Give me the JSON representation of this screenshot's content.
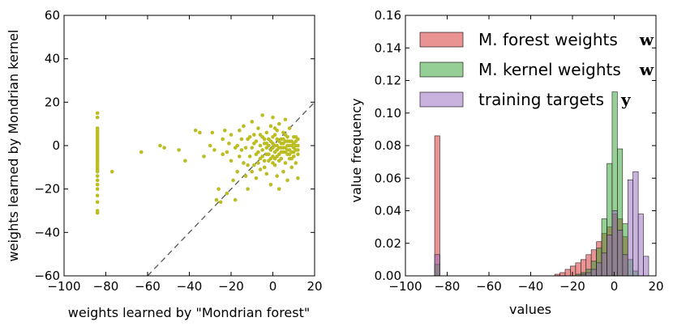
{
  "chart_data": [
    {
      "type": "scatter",
      "xlabel": "weights learned by \"Mondrian forest\"",
      "ylabel": "weights learned by Mondrian kernel",
      "xlim": [
        -100,
        20
      ],
      "ylim": [
        -60,
        60
      ],
      "xticks": [
        -100,
        -80,
        -60,
        -40,
        -20,
        0,
        20
      ],
      "yticks": [
        -60,
        -40,
        -20,
        0,
        20,
        40,
        60
      ],
      "xtick_labels": [
        "−100",
        "−80",
        "−60",
        "−40",
        "−20",
        "0",
        "20"
      ],
      "ytick_labels": [
        "−60",
        "−40",
        "−20",
        "0",
        "20",
        "40",
        "60"
      ],
      "reference_line": {
        "label": "y = x",
        "style": "dashed",
        "color": "#555555"
      },
      "point_color": "#bcbd22",
      "points": [
        [
          -84,
          15
        ],
        [
          -84,
          13
        ],
        [
          -84,
          8
        ],
        [
          -84,
          7
        ],
        [
          -84,
          6
        ],
        [
          -84,
          5
        ],
        [
          -84,
          4
        ],
        [
          -84,
          3
        ],
        [
          -84,
          2
        ],
        [
          -84,
          1
        ],
        [
          -84,
          0
        ],
        [
          -84,
          -1
        ],
        [
          -84,
          -2
        ],
        [
          -84,
          -3
        ],
        [
          -84,
          -4
        ],
        [
          -84,
          -5
        ],
        [
          -84,
          -6
        ],
        [
          -84,
          -7
        ],
        [
          -84,
          -8
        ],
        [
          -84,
          -9
        ],
        [
          -84,
          -10
        ],
        [
          -84,
          -11
        ],
        [
          -84,
          -12
        ],
        [
          -84,
          -14
        ],
        [
          -84,
          -16
        ],
        [
          -84,
          -18
        ],
        [
          -84,
          -20
        ],
        [
          -84,
          -23
        ],
        [
          -84,
          -26
        ],
        [
          -84,
          -30
        ],
        [
          -84,
          -31
        ],
        [
          -77,
          -12
        ],
        [
          -63,
          -3
        ],
        [
          -54,
          0
        ],
        [
          -52,
          -1
        ],
        [
          -45,
          -2
        ],
        [
          -42,
          -7
        ],
        [
          -37,
          7
        ],
        [
          -35,
          6
        ],
        [
          -33,
          -5
        ],
        [
          -30,
          0
        ],
        [
          -29,
          6
        ],
        [
          -28,
          -2
        ],
        [
          -27,
          -25
        ],
        [
          -26,
          -20
        ],
        [
          -25,
          -26
        ],
        [
          -24,
          -4
        ],
        [
          -23,
          7
        ],
        [
          -22,
          -22
        ],
        [
          -21,
          1
        ],
        [
          -20,
          -7
        ],
        [
          -19,
          -16
        ],
        [
          -18,
          -25
        ],
        [
          -17,
          0
        ],
        [
          -16,
          7
        ],
        [
          -15,
          -2
        ],
        [
          -14,
          -8
        ],
        [
          -14,
          9
        ],
        [
          -13,
          -14
        ],
        [
          -12,
          3
        ],
        [
          -12,
          -20
        ],
        [
          -11,
          -5
        ],
        [
          -10,
          11
        ],
        [
          -10,
          -1
        ],
        [
          -9,
          5
        ],
        [
          -9,
          -9
        ],
        [
          -8,
          2
        ],
        [
          -8,
          -15
        ],
        [
          -7,
          -3
        ],
        [
          -7,
          8
        ],
        [
          -6,
          0
        ],
        [
          -6,
          -6
        ],
        [
          -5,
          14
        ],
        [
          -5,
          -2
        ],
        [
          -5,
          4
        ],
        [
          -4,
          -10
        ],
        [
          -4,
          1
        ],
        [
          -3,
          -4
        ],
        [
          -3,
          6
        ],
        [
          -3,
          -13
        ],
        [
          -2,
          0
        ],
        [
          -2,
          -7
        ],
        [
          -2,
          3
        ],
        [
          -1,
          -2
        ],
        [
          -1,
          9
        ],
        [
          -1,
          -18
        ],
        [
          0,
          1
        ],
        [
          0,
          -5
        ],
        [
          0,
          13
        ],
        [
          0,
          -1
        ],
        [
          1,
          -3
        ],
        [
          1,
          5
        ],
        [
          1,
          -9
        ],
        [
          2,
          0
        ],
        [
          2,
          -2
        ],
        [
          2,
          7
        ],
        [
          2,
          -14
        ],
        [
          3,
          2
        ],
        [
          3,
          -4
        ],
        [
          3,
          10
        ],
        [
          3,
          -20
        ],
        [
          4,
          -1
        ],
        [
          4,
          3
        ],
        [
          4,
          -6
        ],
        [
          5,
          1
        ],
        [
          5,
          -3
        ],
        [
          5,
          6
        ],
        [
          5,
          -12
        ],
        [
          6,
          -1
        ],
        [
          6,
          2
        ],
        [
          6,
          -8
        ],
        [
          6,
          12
        ],
        [
          7,
          0
        ],
        [
          7,
          -4
        ],
        [
          7,
          4
        ],
        [
          7,
          -16
        ],
        [
          8,
          -2
        ],
        [
          8,
          2
        ],
        [
          8,
          -6
        ],
        [
          8,
          8
        ],
        [
          9,
          0
        ],
        [
          9,
          -3
        ],
        [
          9,
          -10
        ],
        [
          10,
          1
        ],
        [
          10,
          -1
        ],
        [
          10,
          -5
        ],
        [
          10,
          4
        ],
        [
          11,
          -2
        ],
        [
          11,
          -8
        ],
        [
          11,
          2
        ],
        [
          12,
          0
        ],
        [
          12,
          -4
        ],
        [
          12,
          -15
        ],
        [
          12,
          3
        ],
        [
          -24,
          3
        ],
        [
          -22,
          -3
        ],
        [
          -20,
          5
        ],
        [
          -18,
          -1
        ],
        [
          -17,
          -12
        ],
        [
          -16,
          -5
        ],
        [
          -15,
          3
        ],
        [
          -13,
          -1
        ],
        [
          -12,
          -9
        ],
        [
          -11,
          4
        ],
        [
          -10,
          -12
        ],
        [
          -9,
          1
        ],
        [
          -8,
          -4
        ],
        [
          -7,
          -8
        ],
        [
          -6,
          5
        ],
        [
          -6,
          -11
        ],
        [
          -5,
          -5
        ],
        [
          -4,
          3
        ],
        [
          -4,
          -7
        ],
        [
          -3,
          1
        ],
        [
          -3,
          -1
        ],
        [
          -2,
          -4
        ],
        [
          -1,
          2
        ],
        [
          -1,
          -6
        ],
        [
          0,
          4
        ],
        [
          0,
          -8
        ],
        [
          1,
          0
        ],
        [
          1,
          -6
        ],
        [
          1,
          8
        ],
        [
          2,
          -5
        ],
        [
          2,
          3
        ],
        [
          3,
          -1
        ],
        [
          3,
          -7
        ],
        [
          4,
          1
        ],
        [
          4,
          -3
        ],
        [
          5,
          -1
        ],
        [
          5,
          3
        ],
        [
          6,
          -3
        ],
        [
          6,
          5
        ],
        [
          7,
          -2
        ],
        [
          7,
          2
        ],
        [
          8,
          0
        ],
        [
          8,
          -4
        ],
        [
          9,
          2
        ],
        [
          9,
          -6
        ],
        [
          10,
          -3
        ],
        [
          11,
          0
        ],
        [
          11,
          4
        ],
        [
          12,
          -2
        ]
      ]
    },
    {
      "type": "histogram",
      "xlabel": "values",
      "ylabel": "value frequency",
      "xlim": [
        -100,
        20
      ],
      "ylim": [
        0,
        0.16
      ],
      "xticks": [
        -100,
        -80,
        -60,
        -40,
        -20,
        0,
        20
      ],
      "yticks": [
        0,
        0.02,
        0.04,
        0.06,
        0.08,
        0.1,
        0.12,
        0.14,
        0.16
      ],
      "xtick_labels": [
        "−100",
        "−80",
        "−60",
        "−40",
        "−20",
        "0",
        "20"
      ],
      "ytick_labels": [
        "0.00",
        "0.02",
        "0.04",
        "0.06",
        "0.08",
        "0.10",
        "0.12",
        "0.14",
        "0.16"
      ],
      "bin_edges": [
        -86,
        -83.5,
        -81,
        -78.5,
        -76,
        -73.5,
        -71,
        -68.5,
        -66,
        -63.5,
        -61,
        -58.5,
        -56,
        -53.5,
        -51,
        -48.5,
        -46,
        -43.5,
        -41,
        -38.5,
        -36,
        -33.5,
        -31,
        -28.5,
        -26,
        -23.5,
        -21,
        -18.5,
        -16,
        -13.5,
        -11,
        -8.5,
        -6,
        -3.5,
        -1,
        1.5,
        4,
        6.5,
        9,
        11.5,
        14,
        16.5
      ],
      "series": [
        {
          "name": "M. forest weights",
          "symbol": "w",
          "color": "#d62728",
          "values": [
            0.086,
            0,
            0,
            0,
            0,
            0,
            0,
            0,
            0,
            0,
            0,
            0,
            0,
            0,
            0,
            0,
            0,
            0,
            0,
            0,
            0,
            0,
            0,
            0.001,
            0.002,
            0.004,
            0.006,
            0.008,
            0.01,
            0.013,
            0.016,
            0.021,
            0.026,
            0.03,
            0.038,
            0.035,
            0.024,
            0,
            0,
            0,
            0
          ]
        },
        {
          "name": "M. kernel weights",
          "symbol": "w",
          "color": "#2ca02c",
          "values": [
            0.007,
            0,
            0,
            0,
            0,
            0,
            0,
            0,
            0,
            0,
            0,
            0,
            0,
            0,
            0,
            0,
            0,
            0,
            0,
            0,
            0,
            0,
            0,
            0,
            0,
            0,
            0,
            0.001,
            0.002,
            0.004,
            0.009,
            0.017,
            0.035,
            0.069,
            0.113,
            0.078,
            0.032,
            0.01,
            0.003,
            0,
            0
          ]
        },
        {
          "name": "training targets",
          "symbol": "y",
          "color": "#9467bd",
          "values": [
            0.013,
            0,
            0,
            0,
            0,
            0,
            0,
            0,
            0,
            0,
            0,
            0,
            0,
            0,
            0,
            0,
            0,
            0,
            0,
            0,
            0,
            0,
            0,
            0,
            0,
            0,
            0,
            0,
            0.001,
            0.002,
            0.004,
            0.008,
            0.014,
            0.025,
            0.04,
            0.028,
            0.013,
            0.059,
            0.064,
            0.038,
            0.012
          ]
        }
      ]
    }
  ]
}
